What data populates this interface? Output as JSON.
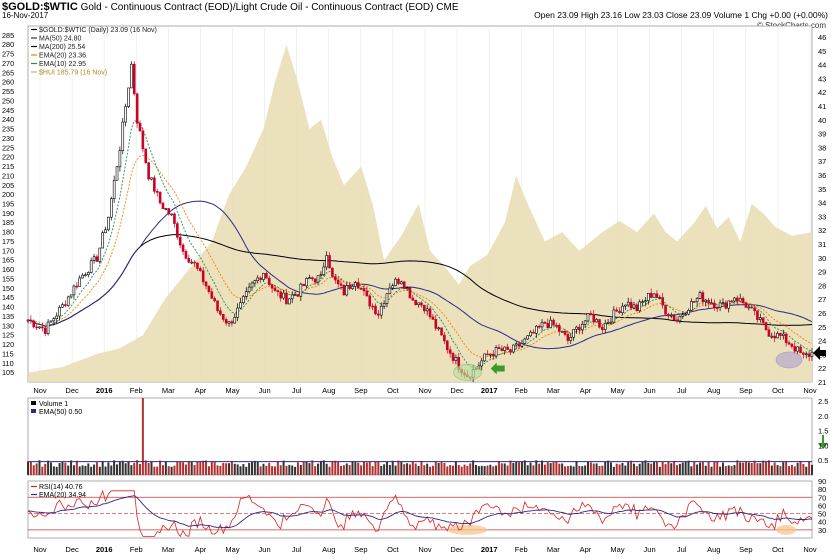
{
  "header": {
    "symbol": "$GOLD:$WTIC",
    "description": "Gold - Continuous Contract (EOD)/Light Crude Oil - Continuous Contract (EOD)",
    "exchange": "CME",
    "date": "16-Nov-2017",
    "quote": "Open 23.09  High 23.16  Low 23.03  Close 23.09  Volume 1  Chg +0.00 (+0.00%)",
    "brand": "© StockCharts.com"
  },
  "colors": {
    "up": "#000000",
    "down": "#cc0022",
    "ma50": "#2a2a8a",
    "ma200": "#000000",
    "ema20": "#ff7f00",
    "ema10": "#2e8b57",
    "hui": "#e8dcb0",
    "rsi": "#dd2222",
    "arrow_green": "#3a9a2a",
    "highlight_green": "#b6e0a0",
    "highlight_purple": "#b7a9d0",
    "highlight_orange": "#f5c590"
  },
  "chart_data": [
    {
      "type": "line",
      "title": "$GOLD:$WTIC (Daily) 23.09 (16 Nov)",
      "legend": [
        {
          "label": "$GOLD:$WTIC (Daily) 23.09 (16 Nov)",
          "color": "#000000"
        },
        {
          "label": "MA(50) 24.80",
          "color": "#2a2a8a"
        },
        {
          "label": "MA(200) 25.54",
          "color": "#000000"
        },
        {
          "label": "EMA(20) 23.36",
          "color": "#ff7f00"
        },
        {
          "label": "EMA(10) 22.95",
          "color": "#2e8b57"
        },
        {
          "label": "$HUI 185.79 (16 Nov)",
          "color": "#c8b070"
        }
      ],
      "x_months": [
        "Nov",
        "Dec",
        "2016",
        "Feb",
        "Mar",
        "Apr",
        "May",
        "Jun",
        "Jul",
        "Aug",
        "Sep",
        "Oct",
        "Nov",
        "Dec",
        "2017",
        "Feb",
        "Mar",
        "Apr",
        "May",
        "Jun",
        "Jul",
        "Aug",
        "Sep",
        "Oct",
        "Nov"
      ],
      "left_axis": {
        "range": [
          100,
          290
        ],
        "ticks": [
          105,
          110,
          115,
          120,
          125,
          130,
          135,
          140,
          145,
          150,
          155,
          160,
          165,
          170,
          175,
          180,
          185,
          190,
          195,
          200,
          205,
          210,
          215,
          220,
          225,
          230,
          235,
          240,
          245,
          250,
          255,
          260,
          265,
          270,
          275,
          280,
          285
        ]
      },
      "right_axis": {
        "range": [
          21,
          46.8
        ],
        "ticks": [
          21,
          22,
          23,
          24,
          25,
          26,
          27,
          28,
          29,
          30,
          31,
          32,
          33,
          34,
          35,
          36,
          37,
          38,
          39,
          40,
          41,
          42,
          43,
          44,
          45,
          46
        ]
      },
      "ratio_anchors": [
        [
          0,
          25.5
        ],
        [
          6,
          24.8
        ],
        [
          12,
          26.5
        ],
        [
          18,
          28.5
        ],
        [
          24,
          30
        ],
        [
          28,
          33
        ],
        [
          32,
          38
        ],
        [
          34,
          41
        ],
        [
          36,
          44
        ],
        [
          38,
          40
        ],
        [
          42,
          36
        ],
        [
          46,
          34
        ],
        [
          50,
          33
        ],
        [
          54,
          30.5
        ],
        [
          58,
          29.5
        ],
        [
          62,
          28
        ],
        [
          66,
          26.2
        ],
        [
          70,
          25.2
        ],
        [
          74,
          26.5
        ],
        [
          78,
          28
        ],
        [
          82,
          29
        ],
        [
          86,
          27.5
        ],
        [
          90,
          27
        ],
        [
          94,
          27.5
        ],
        [
          98,
          28.5
        ],
        [
          102,
          28.5
        ],
        [
          104,
          30.5
        ],
        [
          106,
          28.5
        ],
        [
          110,
          27.5
        ],
        [
          114,
          28.5
        ],
        [
          118,
          27
        ],
        [
          122,
          26
        ],
        [
          126,
          28
        ],
        [
          130,
          28.5
        ],
        [
          134,
          27
        ],
        [
          138,
          26.5
        ],
        [
          142,
          25
        ],
        [
          146,
          23.5
        ],
        [
          150,
          22.2
        ],
        [
          153,
          21.5
        ],
        [
          156,
          22
        ],
        [
          160,
          23
        ],
        [
          164,
          23.3
        ],
        [
          168,
          23.2
        ],
        [
          172,
          23.8
        ],
        [
          176,
          24.5
        ],
        [
          180,
          25.3
        ],
        [
          184,
          25
        ],
        [
          188,
          24
        ],
        [
          192,
          25.1
        ],
        [
          196,
          25.8
        ],
        [
          200,
          25
        ],
        [
          204,
          25.9
        ],
        [
          208,
          26.8
        ],
        [
          212,
          26.3
        ],
        [
          216,
          27.2
        ],
        [
          218,
          27.5
        ],
        [
          222,
          26.2
        ],
        [
          226,
          25.5
        ],
        [
          230,
          26.5
        ],
        [
          234,
          27.2
        ],
        [
          238,
          26.8
        ],
        [
          242,
          26.5
        ],
        [
          246,
          27.2
        ],
        [
          250,
          26.6
        ],
        [
          254,
          25.6
        ],
        [
          258,
          24.6
        ],
        [
          262,
          24.3
        ],
        [
          266,
          23.7
        ],
        [
          270,
          22.8
        ],
        [
          273,
          23.1
        ]
      ],
      "hui_anchors": [
        [
          0,
          105
        ],
        [
          12,
          108
        ],
        [
          24,
          115
        ],
        [
          32,
          118
        ],
        [
          40,
          125
        ],
        [
          48,
          145
        ],
        [
          56,
          160
        ],
        [
          64,
          175
        ],
        [
          70,
          200
        ],
        [
          76,
          215
        ],
        [
          82,
          235
        ],
        [
          86,
          260
        ],
        [
          90,
          280
        ],
        [
          94,
          260
        ],
        [
          98,
          235
        ],
        [
          102,
          240
        ],
        [
          106,
          220
        ],
        [
          110,
          205
        ],
        [
          116,
          215
        ],
        [
          120,
          195
        ],
        [
          124,
          165
        ],
        [
          130,
          178
        ],
        [
          136,
          195
        ],
        [
          140,
          170
        ],
        [
          146,
          160
        ],
        [
          150,
          152
        ],
        [
          154,
          162
        ],
        [
          160,
          168
        ],
        [
          166,
          185
        ],
        [
          170,
          210
        ],
        [
          174,
          195
        ],
        [
          180,
          175
        ],
        [
          186,
          180
        ],
        [
          192,
          170
        ],
        [
          196,
          175
        ],
        [
          200,
          180
        ],
        [
          206,
          186
        ],
        [
          212,
          180
        ],
        [
          218,
          190
        ],
        [
          222,
          180
        ],
        [
          226,
          175
        ],
        [
          232,
          185
        ],
        [
          236,
          194
        ],
        [
          240,
          182
        ],
        [
          244,
          188
        ],
        [
          248,
          175
        ],
        [
          252,
          195
        ],
        [
          256,
          190
        ],
        [
          260,
          183
        ],
        [
          266,
          178
        ],
        [
          273,
          180
        ]
      ],
      "annotations": [
        "green-ellipse-dec-2016",
        "green-arrow-jan-2017",
        "purple-ellipse-nov-2017",
        "black-arrow-latest"
      ]
    },
    {
      "type": "bar",
      "title": "Volume 1",
      "legend": [
        {
          "label": "Volume 1",
          "color": "#000000"
        },
        {
          "label": "EMA(50) 0.50",
          "color": "#2a2a8a"
        }
      ],
      "right_axis": {
        "range": [
          0,
          2.6
        ],
        "ticks": [
          0.5,
          1.0,
          1.5,
          2.0,
          2.5
        ]
      },
      "typical_value": 0.5,
      "spike": {
        "index": 40,
        "value": 2.6
      }
    },
    {
      "type": "line",
      "title": "RSI(14) 40.76",
      "legend": [
        {
          "label": "RSI(14) 40.76",
          "color": "#dd2222"
        },
        {
          "label": "EMA(20) 34.94",
          "color": "#2a2a8a"
        }
      ],
      "right_axis": {
        "range": [
          20,
          90
        ],
        "ticks": [
          30,
          40,
          50,
          60,
          70,
          80,
          90
        ]
      },
      "reference_lines": [
        30,
        50,
        70
      ],
      "last_value": 40.76,
      "ema_last": 34.94,
      "x_months": [
        "Nov",
        "Dec",
        "2016",
        "Feb",
        "Mar",
        "Apr",
        "May",
        "Jun",
        "Jul",
        "Aug",
        "Sep",
        "Oct",
        "Nov",
        "Dec",
        "2017",
        "Feb",
        "Mar",
        "Apr",
        "May",
        "Jun",
        "Jul",
        "Aug",
        "Sep",
        "Oct",
        "Nov"
      ]
    }
  ]
}
